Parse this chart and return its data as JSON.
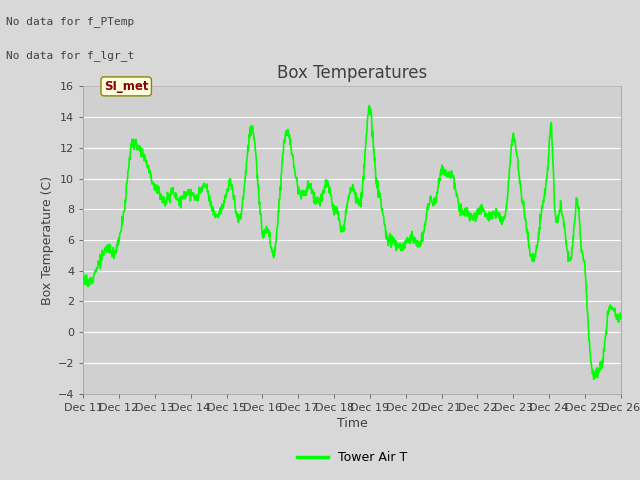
{
  "title": "Box Temperatures",
  "xlabel": "Time",
  "ylabel": "Box Temperature (C)",
  "ylim": [
    -4,
    16
  ],
  "yticks": [
    -4,
    -2,
    0,
    2,
    4,
    6,
    8,
    10,
    12,
    14,
    16
  ],
  "line_color": "#00ff00",
  "line_width": 1.2,
  "bg_color": "#d8d8d8",
  "plot_bg_color": "#d0d0d0",
  "text_color": "#404040",
  "no_data_text1": "No data for f_PTemp",
  "no_data_text2": "No data for f_lgr_t",
  "si_met_label": "SI_met",
  "legend_label": "Tower Air T",
  "xtick_labels": [
    "Dec 11",
    "Dec 12",
    "Dec 13",
    "Dec 14",
    "Dec 15",
    "Dec 16",
    "Dec 17",
    "Dec 18",
    "Dec 19",
    "Dec 20",
    "Dec 21",
    "Dec 22",
    "Dec 23",
    "Dec 24",
    "Dec 25",
    "Dec 26"
  ],
  "grid_color": "#bbbbbb",
  "title_fontsize": 12,
  "axis_fontsize": 9,
  "tick_fontsize": 8,
  "control_x": [
    0,
    0.15,
    0.3,
    0.5,
    0.7,
    0.9,
    1.0,
    1.15,
    1.3,
    1.5,
    1.7,
    1.85,
    2.0,
    2.15,
    2.3,
    2.5,
    2.7,
    2.85,
    3.0,
    3.2,
    3.4,
    3.6,
    3.8,
    4.0,
    4.15,
    4.3,
    4.5,
    4.65,
    4.8,
    5.0,
    5.15,
    5.3,
    5.5,
    5.65,
    5.8,
    6.0,
    6.15,
    6.3,
    6.5,
    6.65,
    6.85,
    7.0,
    7.1,
    7.2,
    7.35,
    7.5,
    7.65,
    7.8,
    8.0,
    8.15,
    8.3,
    8.5,
    8.65,
    8.8,
    9.0,
    9.15,
    9.3,
    9.5,
    9.65,
    9.8,
    10.0,
    10.15,
    10.3,
    10.5,
    10.65,
    10.8,
    11.0,
    11.15,
    11.3,
    11.5,
    11.65,
    11.8,
    12.0,
    12.15,
    12.3,
    12.5,
    12.65,
    12.8,
    13.0,
    13.05,
    13.15,
    13.3,
    13.5,
    13.65,
    13.8,
    13.9,
    14.0,
    14.05,
    14.1,
    14.2,
    14.35,
    14.5,
    14.65,
    14.8,
    15.0
  ],
  "control_y": [
    3.8,
    3.2,
    3.8,
    4.8,
    5.5,
    5.3,
    6.2,
    8.0,
    11.5,
    12.2,
    11.5,
    10.5,
    9.5,
    9.0,
    8.5,
    9.2,
    8.5,
    9.0,
    9.0,
    8.8,
    9.5,
    8.0,
    7.8,
    9.0,
    9.5,
    7.5,
    9.5,
    13.0,
    12.0,
    6.5,
    6.7,
    5.0,
    9.5,
    13.0,
    12.0,
    9.5,
    9.0,
    9.5,
    8.5,
    8.8,
    9.5,
    8.0,
    7.8,
    6.5,
    8.0,
    9.5,
    8.5,
    9.5,
    14.5,
    10.5,
    8.5,
    6.0,
    6.0,
    5.5,
    5.8,
    6.2,
    5.8,
    6.5,
    8.5,
    8.5,
    10.5,
    10.3,
    10.3,
    8.0,
    7.8,
    7.5,
    7.7,
    8.0,
    7.5,
    7.8,
    7.5,
    8.0,
    12.7,
    10.5,
    8.0,
    5.0,
    5.5,
    8.0,
    12.0,
    13.5,
    8.5,
    8.0,
    5.5,
    5.5,
    8.5,
    5.5,
    4.2,
    2.2,
    0.2,
    -2.5,
    -2.5,
    -1.8,
    1.2,
    1.5,
    1.2
  ]
}
